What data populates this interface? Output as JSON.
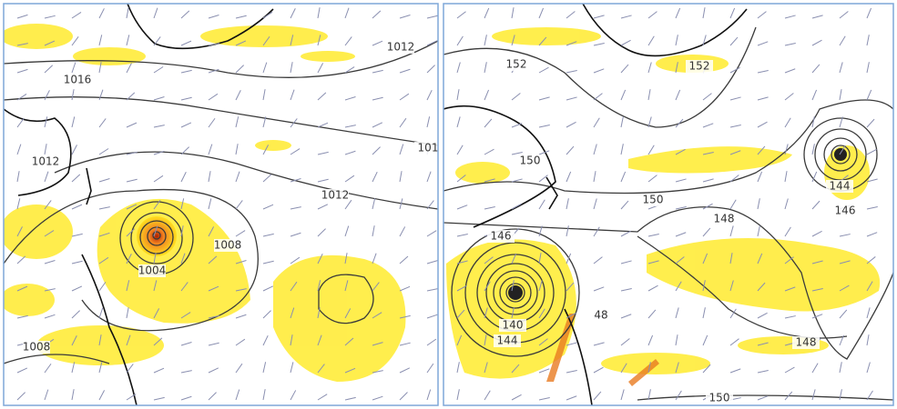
{
  "panels": [
    {
      "labels": [
        "1012",
        "1016",
        "1012",
        "101",
        "1012",
        "1008",
        "1004",
        "1008"
      ]
    },
    {
      "labels": [
        "152",
        "152",
        "150",
        "150",
        "148",
        "146",
        "144",
        "146",
        "48",
        "140",
        "144",
        "148",
        "150"
      ]
    }
  ]
}
